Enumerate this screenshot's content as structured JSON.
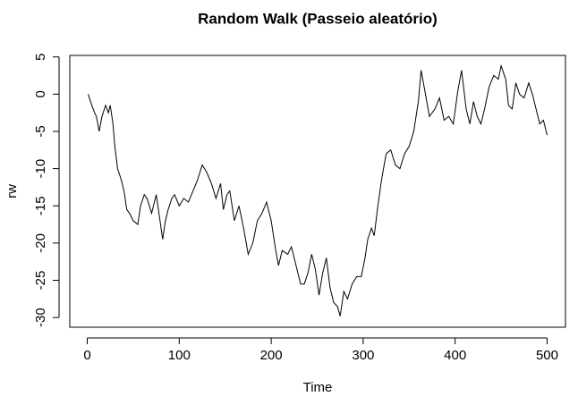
{
  "chart_data": {
    "type": "line",
    "title": "Random Walk (Passeio aleatório)",
    "xlabel": "Time",
    "ylabel": "rw",
    "x": [
      1,
      5,
      8,
      10,
      13,
      16,
      20,
      23,
      25,
      28,
      30,
      33,
      37,
      40,
      43,
      46,
      50,
      55,
      58,
      62,
      65,
      70,
      75,
      78,
      82,
      85,
      88,
      92,
      95,
      100,
      105,
      110,
      115,
      120,
      125,
      130,
      135,
      140,
      145,
      148,
      152,
      155,
      160,
      165,
      170,
      175,
      180,
      185,
      190,
      195,
      200,
      205,
      208,
      212,
      218,
      222,
      228,
      232,
      236,
      240,
      244,
      248,
      252,
      256,
      260,
      264,
      268,
      272,
      275,
      279,
      283,
      288,
      293,
      298,
      302,
      305,
      309,
      312,
      316,
      320,
      325,
      330,
      335,
      340,
      345,
      350,
      355,
      360,
      363,
      367,
      372,
      378,
      383,
      388,
      393,
      398,
      403,
      407,
      412,
      416,
      420,
      424,
      428,
      432,
      437,
      442,
      447,
      450,
      455,
      458,
      462,
      466,
      470,
      475,
      480,
      484,
      488,
      492,
      496,
      500
    ],
    "series": [
      {
        "name": "rw",
        "color": "#000000",
        "values": [
          0,
          -1.5,
          -2.5,
          -3,
          -5,
          -3,
          -1.5,
          -2.5,
          -1.5,
          -4,
          -7,
          -10,
          -11.5,
          -13,
          -15.5,
          -16,
          -17,
          -17.5,
          -15,
          -13.5,
          -14,
          -16,
          -13.5,
          -16,
          -19.5,
          -17,
          -15.5,
          -14,
          -13.5,
          -15,
          -14,
          -14.5,
          -13,
          -11.5,
          -9.5,
          -10.5,
          -12,
          -14,
          -12,
          -15.5,
          -13.5,
          -13,
          -17,
          -15,
          -18,
          -21.5,
          -20,
          -17,
          -16,
          -14.5,
          -17,
          -21,
          -23,
          -21,
          -21.5,
          -20.5,
          -23.5,
          -25.5,
          -25.5,
          -24,
          -21.5,
          -23.5,
          -27,
          -24,
          -22,
          -26,
          -28,
          -28.5,
          -29.8,
          -26.5,
          -27.5,
          -25.5,
          -24.5,
          -24.5,
          -22,
          -19.5,
          -18,
          -19,
          -15,
          -11.5,
          -8,
          -7.5,
          -9.5,
          -10,
          -8,
          -7,
          -5,
          -1,
          3.2,
          0.5,
          -3,
          -2,
          -0.5,
          -3.5,
          -3,
          -4,
          0.5,
          3.2,
          -2,
          -4,
          -1,
          -3,
          -4,
          -2,
          1,
          2.5,
          2,
          3.8,
          2,
          -1.5,
          -2,
          1.5,
          0,
          -0.5,
          1.5,
          0,
          -2,
          -4,
          -3.5,
          -5.5
        ]
      }
    ],
    "xlim": [
      -18.96,
      519.96
    ],
    "ylim": [
      -31.3,
      5.2
    ],
    "xticks": [
      0,
      100,
      200,
      300,
      400,
      500
    ],
    "yticks": [
      -30,
      -25,
      -20,
      -15,
      -10,
      -5,
      0,
      5
    ]
  }
}
